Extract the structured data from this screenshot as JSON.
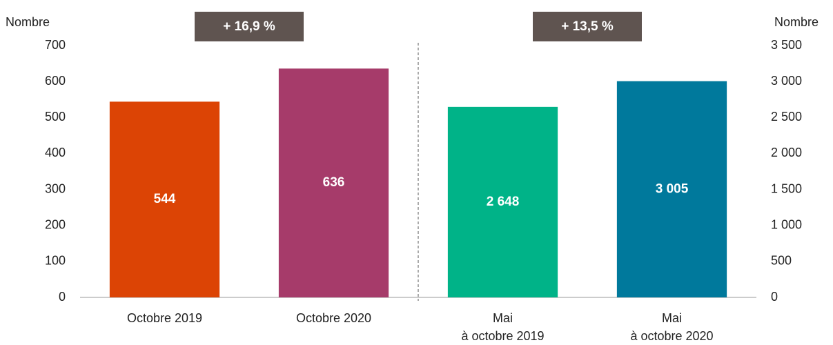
{
  "chart_data": {
    "type": "bar",
    "y_label": "Nombre",
    "y2_label": "Nombre",
    "categories": [
      "Octobre 2019",
      "Octobre 2020",
      "Mai\nà octobre 2019",
      "Mai\nà octobre 2020"
    ],
    "colors": [
      "#dc4405",
      "#a63b6a",
      "#00b388",
      "#00799c"
    ],
    "series": [
      {
        "values": [
          544,
          636,
          null,
          null
        ]
      },
      {
        "axis": "y2",
        "values": [
          null,
          null,
          2648,
          3005
        ],
        "value_labels": [
          null,
          null,
          "2 648",
          "3 005"
        ]
      }
    ],
    "ylim": [
      0,
      700
    ],
    "yticks": [
      0,
      100,
      200,
      300,
      400,
      500,
      600,
      700
    ],
    "y2lim": [
      0,
      3500
    ],
    "y2ticks": [
      0,
      500,
      {
        "value": 1000,
        "label": "1 000"
      },
      {
        "value": 1500,
        "label": "1 500"
      },
      {
        "value": 2000,
        "label": "2 000"
      },
      {
        "value": 2500,
        "label": "2 500"
      },
      {
        "value": 3000,
        "label": "3 000"
      },
      {
        "value": 3500,
        "label": "3 500"
      }
    ],
    "annotations": [
      "+ 16,9 %",
      "+ 13,5 %"
    ]
  }
}
